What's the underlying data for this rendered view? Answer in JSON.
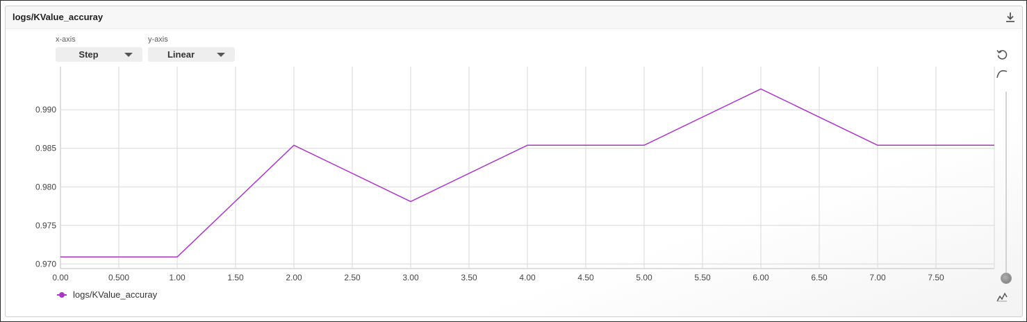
{
  "panel": {
    "title": "logs/KValue_accuray"
  },
  "controls": {
    "x_axis": {
      "label": "x-axis",
      "value": "Step"
    },
    "y_axis": {
      "label": "y-axis",
      "value": "Linear"
    }
  },
  "icons": {
    "download": "download-icon",
    "reset": "reset-zoom-icon",
    "smoothing": "smoothing-curve-icon",
    "raw": "raw-line-icon"
  },
  "colors": {
    "series": "#a63bc2",
    "grid": "#d9d9d9",
    "axis": "#444444"
  },
  "legend": {
    "label": "logs/KValue_accuray"
  },
  "chart_data": {
    "type": "line",
    "x": [
      0,
      1,
      2,
      3,
      4,
      5,
      6,
      7,
      8
    ],
    "series": [
      {
        "name": "logs/KValue_accuray",
        "values": [
          0.9709,
          0.9709,
          0.9854,
          0.9781,
          0.9854,
          0.9854,
          0.9927,
          0.9854,
          0.9854
        ]
      }
    ],
    "xlim": [
      0,
      8
    ],
    "ylim": [
      0.9694,
      0.9956
    ],
    "x_ticks": [
      0,
      0.5,
      1,
      1.5,
      2,
      2.5,
      3,
      3.5,
      4,
      4.5,
      5,
      5.5,
      6,
      6.5,
      7,
      7.5
    ],
    "x_tick_labels": [
      "0.00",
      "0.500",
      "1.00",
      "1.50",
      "2.00",
      "2.50",
      "3.00",
      "3.50",
      "4.00",
      "4.50",
      "5.00",
      "5.50",
      "6.00",
      "6.50",
      "7.00",
      "7.50"
    ],
    "y_ticks": [
      0.97,
      0.975,
      0.98,
      0.985,
      0.99
    ],
    "y_tick_labels": [
      "0.970",
      "0.975",
      "0.980",
      "0.985",
      "0.990"
    ],
    "grid": true,
    "legend_position": "bottom-left"
  }
}
